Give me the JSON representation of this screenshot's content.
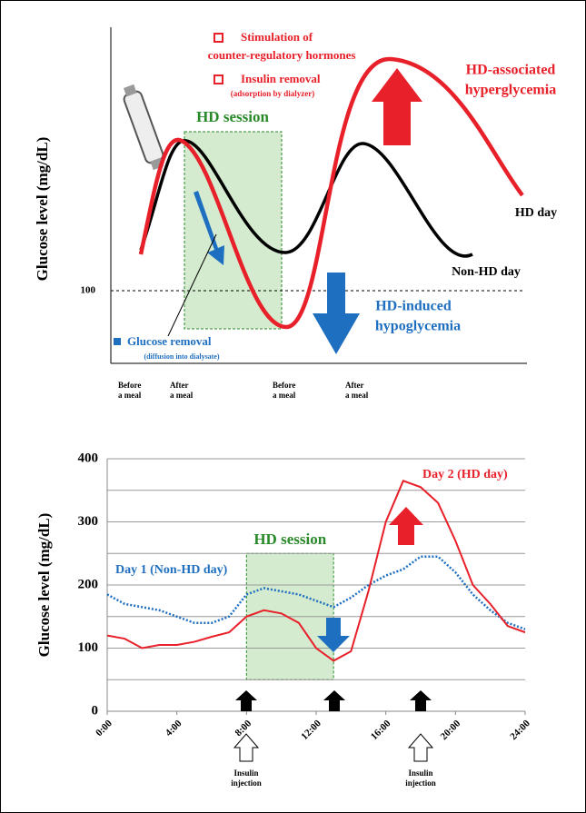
{
  "schematic": {
    "y_label": "Glucose level (mg/dL)",
    "y_tick": "100",
    "hormones_line1": "Stimulation of",
    "hormones_line2": "counter-regulatory hormones",
    "insulin_removal": "Insulin removal",
    "insulin_removal_note": "(adsorption by dialyzer)",
    "hyper_line1": "HD-associated",
    "hyper_line2": "hyperglycemia",
    "hd_session": "HD session",
    "hd_day": "HD day",
    "non_hd_day": "Non-HD day",
    "hypo_line1": "HD-induced",
    "hypo_line2": "hypoglycemia",
    "glucose_removal": "Glucose removal",
    "glucose_removal_note": "(diffusion into dialysate)",
    "x_labels": [
      "Before a meal",
      "After a meal",
      "Before a meal",
      "After a meal"
    ]
  },
  "chart_data": {
    "type": "line",
    "y_label": "Glucose level (mg/dL)",
    "x": [
      0,
      1,
      2,
      3,
      4,
      5,
      6,
      7,
      8,
      9,
      10,
      11,
      12,
      13,
      14,
      15,
      16,
      17,
      18,
      19,
      20,
      21,
      22,
      23,
      24
    ],
    "xlim": [
      0,
      24
    ],
    "xticks": [
      {
        "value": 0,
        "label": "0:00"
      },
      {
        "value": 4,
        "label": "4:00"
      },
      {
        "value": 8,
        "label": "8:00"
      },
      {
        "value": 12,
        "label": "12:00"
      },
      {
        "value": 16,
        "label": "16:00"
      },
      {
        "value": 20,
        "label": "20:00"
      },
      {
        "value": 24,
        "label": "24:00"
      }
    ],
    "ylim": [
      0,
      400
    ],
    "yticks": [
      0,
      100,
      200,
      300,
      400
    ],
    "minor_yticks": [
      50,
      150,
      250,
      350
    ],
    "grid": true,
    "hd_session": {
      "label": "HD session",
      "x": [
        8,
        13
      ],
      "y": [
        50,
        250
      ],
      "color": "#2a8a2a"
    },
    "insulin_labels": [
      "Insulin injection",
      "Insulin injection"
    ],
    "series": [
      {
        "name": "Day 1 (Non-HD day)",
        "color": "#1f6fc0",
        "values": [
          185,
          170,
          165,
          160,
          150,
          140,
          140,
          150,
          185,
          195,
          190,
          185,
          175,
          165,
          180,
          200,
          215,
          225,
          245,
          245,
          220,
          185,
          160,
          140,
          130
        ]
      },
      {
        "name": "Day 2 (HD day)",
        "color": "#e8202a",
        "values": [
          120,
          115,
          100,
          105,
          105,
          110,
          118,
          125,
          150,
          160,
          155,
          140,
          100,
          80,
          95,
          190,
          300,
          365,
          355,
          330,
          270,
          200,
          170,
          135,
          125
        ]
      }
    ]
  }
}
